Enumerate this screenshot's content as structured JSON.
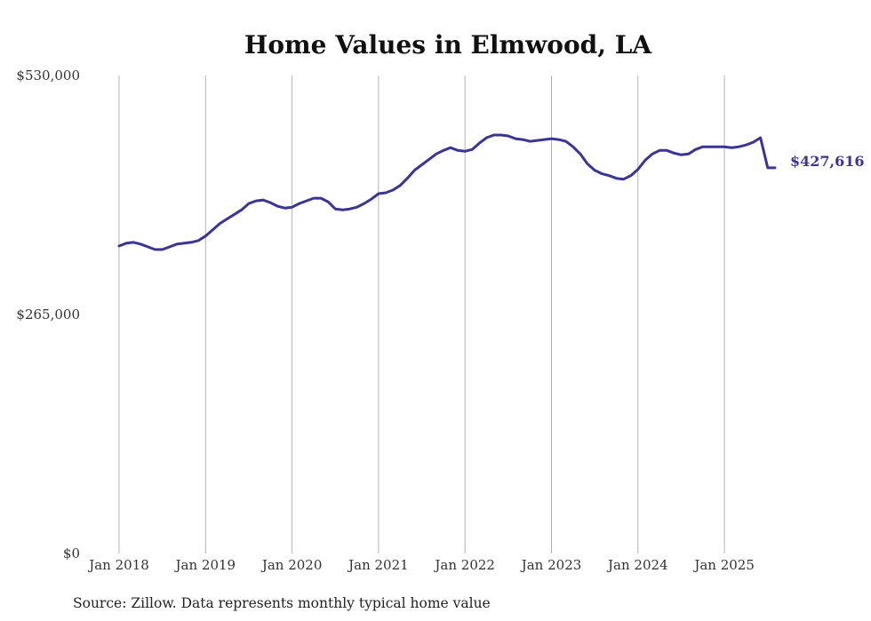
{
  "chart_data": {
    "type": "line",
    "title": "Home Values in Elmwood, LA",
    "xlabel": "",
    "ylabel": "",
    "ylim": [
      0,
      530000
    ],
    "y_ticks": [
      {
        "value": 0,
        "label": "$0"
      },
      {
        "value": 265000,
        "label": "$265,000"
      },
      {
        "value": 530000,
        "label": "$530,000"
      }
    ],
    "x_ticks": [
      {
        "date": "2018-01",
        "label": "Jan 2018"
      },
      {
        "date": "2019-01",
        "label": "Jan 2019"
      },
      {
        "date": "2020-01",
        "label": "Jan 2020"
      },
      {
        "date": "2021-01",
        "label": "Jan 2021"
      },
      {
        "date": "2022-01",
        "label": "Jan 2022"
      },
      {
        "date": "2023-01",
        "label": "Jan 2023"
      },
      {
        "date": "2024-01",
        "label": "Jan 2024"
      },
      {
        "date": "2025-01",
        "label": "Jan 2025"
      }
    ],
    "grid": {
      "vertical": true,
      "horizontal": false
    },
    "line_color": "#3b3494",
    "end_label": "$427,616",
    "series": [
      {
        "x": [
          "2018-01",
          "2018-02",
          "2018-03",
          "2018-04",
          "2018-05",
          "2018-06",
          "2018-07",
          "2018-08",
          "2018-09",
          "2018-10",
          "2018-11",
          "2018-12",
          "2019-01",
          "2019-02",
          "2019-03",
          "2019-04",
          "2019-05",
          "2019-06",
          "2019-07",
          "2019-08",
          "2019-09",
          "2019-10",
          "2019-11",
          "2019-12",
          "2020-01",
          "2020-02",
          "2020-03",
          "2020-04",
          "2020-05",
          "2020-06",
          "2020-07",
          "2020-08",
          "2020-09",
          "2020-10",
          "2020-11",
          "2020-12",
          "2021-01",
          "2021-02",
          "2021-03",
          "2021-04",
          "2021-05",
          "2021-06",
          "2021-07",
          "2021-08",
          "2021-09",
          "2021-10",
          "2021-11",
          "2021-12",
          "2022-01",
          "2022-02",
          "2022-03",
          "2022-04",
          "2022-05",
          "2022-06",
          "2022-07",
          "2022-08",
          "2022-09",
          "2022-10",
          "2022-11",
          "2022-12",
          "2023-01",
          "2023-02",
          "2023-03",
          "2023-04",
          "2023-05",
          "2023-06",
          "2023-07",
          "2023-08",
          "2023-09",
          "2023-10",
          "2023-11",
          "2023-12",
          "2024-01",
          "2024-02",
          "2024-03",
          "2024-04",
          "2024-05",
          "2024-06",
          "2024-07",
          "2024-08",
          "2024-09",
          "2024-10",
          "2024-11",
          "2024-12",
          "2025-01",
          "2025-02",
          "2025-03",
          "2025-04",
          "2025-05",
          "2025-06",
          "2025-07",
          "2025-08"
        ],
        "values": [
          341000,
          344000,
          345000,
          343000,
          340000,
          337000,
          337000,
          340000,
          343000,
          344000,
          345000,
          347000,
          352000,
          359000,
          366000,
          371000,
          376000,
          381000,
          388000,
          391000,
          392000,
          389000,
          385000,
          383000,
          384000,
          388000,
          391000,
          394000,
          394000,
          390000,
          382000,
          381000,
          382000,
          384000,
          388000,
          393000,
          399000,
          400000,
          403000,
          408000,
          416000,
          425000,
          431000,
          437000,
          443000,
          447000,
          450000,
          447000,
          446000,
          448000,
          455000,
          461000,
          464000,
          464000,
          463000,
          460000,
          459000,
          457000,
          458000,
          459000,
          460000,
          459000,
          457000,
          451000,
          443000,
          432000,
          425000,
          421000,
          419000,
          416000,
          415000,
          419000,
          426000,
          436000,
          443000,
          447000,
          447000,
          444000,
          442000,
          443000,
          448000,
          451000,
          451000,
          451000,
          451000,
          450000,
          451000,
          453000,
          456000,
          461000,
          427616,
          427616
        ]
      }
    ]
  },
  "footer": {
    "source": "Source: Zillow. Data represents monthly typical home value"
  }
}
